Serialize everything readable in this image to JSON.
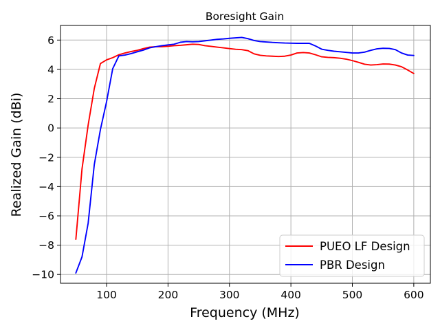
{
  "chart_data": {
    "type": "line",
    "title": "Boresight Gain",
    "xlabel": "Frequency (MHz)",
    "ylabel": "Realized Gain (dBi)",
    "xlim": [
      25,
      627
    ],
    "ylim": [
      -10.6,
      7.0
    ],
    "xticks": [
      100,
      200,
      300,
      400,
      500,
      600
    ],
    "yticks": [
      -10,
      -8,
      -6,
      -4,
      -2,
      0,
      2,
      4,
      6
    ],
    "xtick_labels": [
      "100",
      "200",
      "300",
      "400",
      "500",
      "600"
    ],
    "ytick_labels": [
      "−10",
      "−8",
      "−6",
      "−4",
      "−2",
      "0",
      "2",
      "4",
      "6"
    ],
    "grid": true,
    "legend_position": "lower-right",
    "series": [
      {
        "name": "PUEO LF Design",
        "color": "#ff0000",
        "x": [
          50,
          60,
          70,
          80,
          90,
          100,
          110,
          120,
          130,
          140,
          150,
          160,
          170,
          180,
          190,
          200,
          210,
          220,
          230,
          240,
          250,
          260,
          270,
          280,
          290,
          300,
          310,
          320,
          330,
          340,
          350,
          360,
          370,
          380,
          390,
          400,
          410,
          420,
          430,
          440,
          450,
          460,
          470,
          480,
          490,
          500,
          510,
          520,
          530,
          540,
          550,
          560,
          570,
          580,
          590,
          600
        ],
        "y": [
          -7.6,
          -2.8,
          0.2,
          2.7,
          4.4,
          4.65,
          4.8,
          5.0,
          5.12,
          5.22,
          5.3,
          5.42,
          5.52,
          5.55,
          5.55,
          5.58,
          5.62,
          5.64,
          5.68,
          5.72,
          5.7,
          5.62,
          5.57,
          5.52,
          5.47,
          5.42,
          5.37,
          5.35,
          5.28,
          5.06,
          4.96,
          4.92,
          4.9,
          4.88,
          4.9,
          4.98,
          5.12,
          5.15,
          5.12,
          5.0,
          4.86,
          4.82,
          4.8,
          4.76,
          4.7,
          4.6,
          4.48,
          4.35,
          4.3,
          4.32,
          4.37,
          4.36,
          4.3,
          4.18,
          3.96,
          3.72
        ]
      },
      {
        "name": "PBR Design",
        "color": "#0000ff",
        "x": [
          50,
          60,
          70,
          80,
          90,
          100,
          110,
          120,
          130,
          140,
          150,
          160,
          170,
          180,
          190,
          200,
          210,
          220,
          230,
          240,
          250,
          260,
          270,
          280,
          290,
          300,
          310,
          320,
          330,
          340,
          350,
          360,
          370,
          380,
          390,
          400,
          410,
          420,
          430,
          440,
          450,
          460,
          470,
          480,
          490,
          500,
          510,
          520,
          530,
          540,
          550,
          560,
          570,
          580,
          590,
          600
        ],
        "y": [
          -9.9,
          -8.8,
          -6.5,
          -2.5,
          -0.1,
          1.8,
          4.05,
          4.92,
          4.98,
          5.08,
          5.2,
          5.32,
          5.47,
          5.55,
          5.62,
          5.67,
          5.72,
          5.85,
          5.9,
          5.88,
          5.9,
          5.95,
          6.0,
          6.05,
          6.08,
          6.12,
          6.15,
          6.18,
          6.1,
          5.97,
          5.9,
          5.87,
          5.84,
          5.82,
          5.8,
          5.79,
          5.78,
          5.78,
          5.78,
          5.6,
          5.38,
          5.3,
          5.24,
          5.2,
          5.16,
          5.12,
          5.12,
          5.18,
          5.3,
          5.4,
          5.44,
          5.43,
          5.35,
          5.12,
          4.98,
          4.95
        ]
      }
    ]
  }
}
